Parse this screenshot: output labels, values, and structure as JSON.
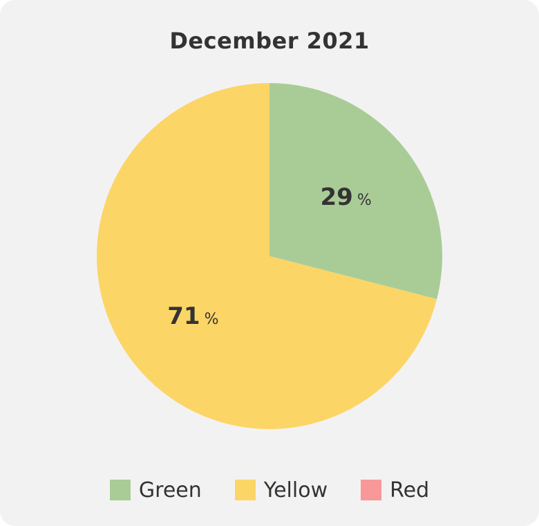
{
  "chart_data": {
    "type": "pie",
    "title": "December 2021",
    "slices": [
      {
        "name": "Green",
        "value": 29,
        "label": "29",
        "unit": "%",
        "color": "#a9cc96"
      },
      {
        "name": "Yellow",
        "value": 71,
        "label": "71",
        "unit": "%",
        "color": "#fcd567"
      },
      {
        "name": "Red",
        "value": 0,
        "label": "",
        "unit": "",
        "color": "#f99898"
      }
    ],
    "legend": {
      "placement": "bottom",
      "entries": [
        {
          "name": "Green",
          "color": "#a9cc96"
        },
        {
          "name": "Yellow",
          "color": "#fcd567"
        },
        {
          "name": "Red",
          "color": "#f99898"
        }
      ]
    },
    "start_angle": "top, clockwise"
  }
}
